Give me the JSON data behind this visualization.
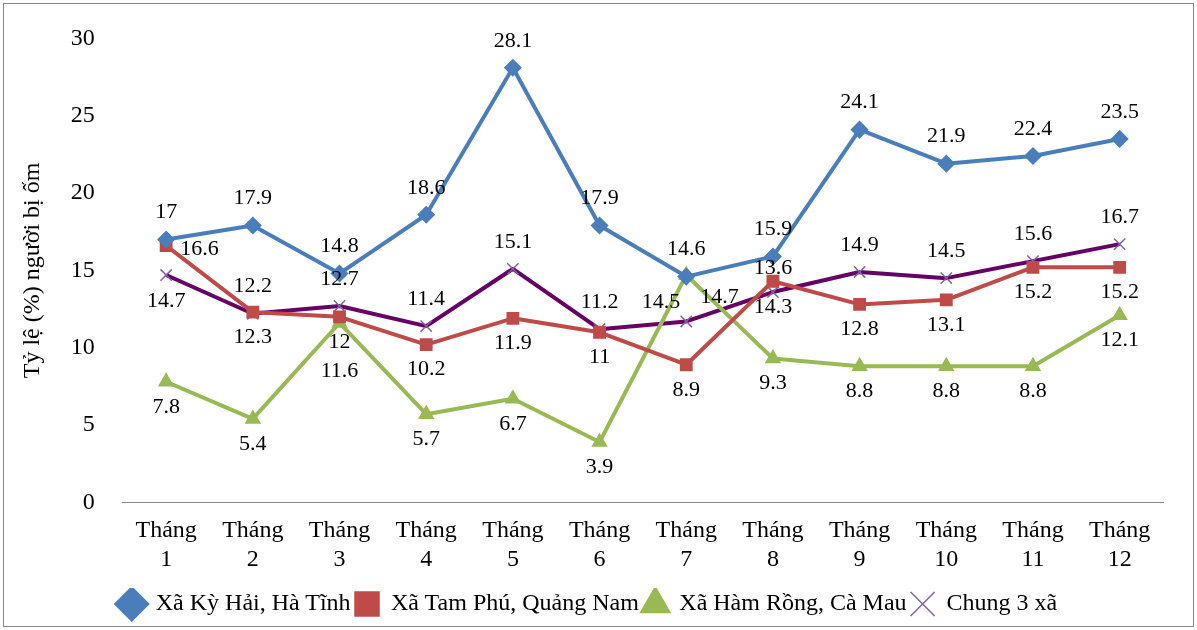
{
  "chart_data": {
    "type": "line",
    "ylabel": "Tỷ lệ (%) người bị ốm",
    "categories": [
      "Tháng 1",
      "Tháng 2",
      "Tháng 3",
      "Tháng 4",
      "Tháng 5",
      "Tháng 6",
      "Tháng 7",
      "Tháng 8",
      "Tháng 9",
      "Tháng 10",
      "Tháng 11",
      "Tháng 12"
    ],
    "ylim": [
      0,
      30
    ],
    "yticks": [
      0,
      5,
      10,
      15,
      20,
      25,
      30
    ],
    "grid": false,
    "legend": "bottom",
    "series": [
      {
        "name": "Xã Kỳ Hải, Hà Tĩnh",
        "color": "#4a7ebb",
        "marker": "diamond",
        "values": [
          17,
          17.9,
          14.8,
          18.6,
          28.1,
          17.9,
          14.6,
          15.9,
          24.1,
          21.9,
          22.4,
          23.5
        ],
        "value_labels": [
          "17",
          "17.9",
          "14.8",
          "18.6",
          "28.1",
          "17.9",
          "14.6",
          "15.9",
          "24.1",
          "21.9",
          "22.4",
          "23.5"
        ]
      },
      {
        "name": "Xã Tam Phú, Quảng Nam",
        "color": "#be4b48",
        "marker": "square",
        "values": [
          16.6,
          12.3,
          12,
          10.2,
          11.9,
          11,
          8.9,
          14.3,
          12.8,
          13.1,
          15.2,
          15.2
        ],
        "value_labels": [
          "16.6",
          "12.3",
          "12",
          "10.2",
          "11.9",
          "11",
          "8.9",
          "14.3",
          "12.8",
          "13.1",
          "15.2",
          "15.2"
        ]
      },
      {
        "name": "Xã Hàm Rồng, Cà Mau",
        "color": "#98b954",
        "marker": "triangle",
        "values": [
          7.8,
          5.4,
          11.6,
          5.7,
          6.7,
          3.9,
          14.7,
          9.3,
          8.8,
          8.8,
          8.8,
          12.1
        ],
        "value_labels": [
          "7.8",
          "5.4",
          "11.6",
          "5.7",
          "6.7",
          "3.9",
          "14.7",
          "9.3",
          "8.8",
          "8.8",
          "8.8",
          "12.1"
        ]
      },
      {
        "name": "Chung 3 xã",
        "color": "#660066",
        "marker": "cross",
        "values": [
          14.7,
          12.2,
          12.7,
          11.4,
          15.1,
          11.2,
          11.7,
          13.6,
          14.9,
          14.5,
          15.6,
          16.7
        ],
        "value_labels": [
          "14.7",
          "12.2",
          "12.7",
          "11.4",
          "15.1",
          "11.2",
          null,
          "13.6",
          "14.9",
          "14.5",
          "15.6",
          "16.7"
        ]
      }
    ],
    "annotations": [
      {
        "text": "14.5",
        "x": "Tháng 7",
        "y": 11.7
      }
    ]
  }
}
